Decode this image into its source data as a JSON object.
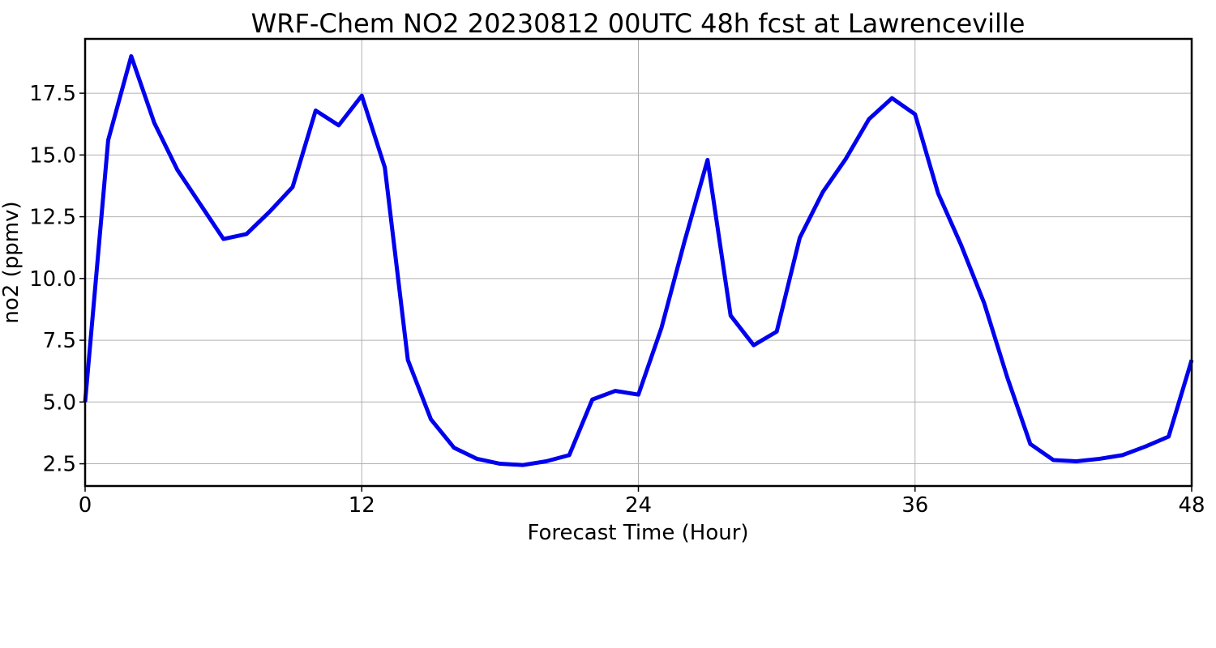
{
  "chart_data": {
    "type": "line",
    "title": "WRF-Chem NO2  20230812 00UTC 48h fcst at Lawrenceville",
    "xlabel": "Forecast Time (Hour)",
    "ylabel": "no2  (ppmv)",
    "xlim": [
      0,
      48
    ],
    "ylim": [
      1.6,
      19.7
    ],
    "xticks": [
      0,
      12,
      24,
      36,
      48
    ],
    "yticks": [
      2.5,
      5.0,
      7.5,
      10.0,
      12.5,
      15.0,
      17.5
    ],
    "ytick_labels": [
      "2.5",
      "5.0",
      "7.5",
      "10.0",
      "12.5",
      "15.0",
      "17.5"
    ],
    "grid": true,
    "colors": {
      "line": "#0000ee"
    },
    "series": [
      {
        "x": [
          0,
          1,
          2,
          3,
          4,
          5,
          6,
          7,
          8,
          9,
          10,
          11,
          12,
          13,
          14,
          15,
          16,
          17,
          18,
          19,
          20,
          21,
          22,
          23,
          24,
          25,
          26,
          27,
          28,
          29,
          30,
          31,
          32,
          33,
          34,
          35,
          36,
          37,
          38,
          39,
          40,
          41,
          42,
          43,
          44,
          45,
          46,
          47,
          48
        ],
        "values": [
          5.0,
          15.6,
          19.0,
          16.3,
          14.4,
          13.0,
          11.6,
          11.8,
          12.7,
          13.7,
          16.8,
          16.2,
          17.4,
          14.5,
          6.7,
          4.3,
          3.15,
          2.7,
          2.5,
          2.45,
          2.6,
          2.85,
          5.1,
          5.45,
          5.3,
          8.0,
          11.5,
          14.8,
          8.5,
          7.3,
          7.85,
          11.65,
          13.5,
          14.85,
          16.45,
          17.3,
          16.65,
          13.45,
          11.35,
          9.0,
          6.0,
          3.3,
          2.65,
          2.6,
          2.7,
          2.85,
          3.2,
          3.6,
          6.7
        ]
      }
    ]
  }
}
